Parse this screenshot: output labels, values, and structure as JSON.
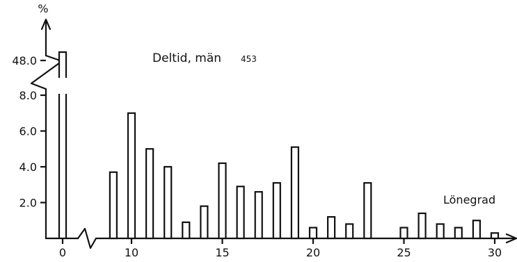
{
  "chart_data": {
    "type": "bar",
    "title": "Deltid, män",
    "count_label": "453",
    "xlabel": "Lönegrad",
    "ylabel": "%",
    "x_ticks": [
      "0",
      "10",
      "15",
      "20",
      "25",
      "30"
    ],
    "y_ticks": [
      "2.0",
      "4.0",
      "6.0",
      "8.0",
      "48.0"
    ],
    "y_break": [
      8.6,
      47.6
    ],
    "x_break_between": [
      0,
      9
    ],
    "ylim": [
      0,
      9.2
    ],
    "categories": [
      0,
      9,
      10,
      11,
      12,
      13,
      14,
      15,
      16,
      17,
      18,
      19,
      20,
      21,
      22,
      23,
      25,
      26,
      27,
      28,
      29,
      30
    ],
    "values": [
      48.3,
      3.7,
      7.0,
      5.0,
      4.0,
      0.9,
      1.8,
      4.2,
      2.9,
      2.6,
      3.1,
      5.1,
      0.6,
      1.2,
      0.8,
      3.1,
      0.6,
      1.4,
      0.8,
      0.6,
      1.0,
      0.3
    ]
  }
}
